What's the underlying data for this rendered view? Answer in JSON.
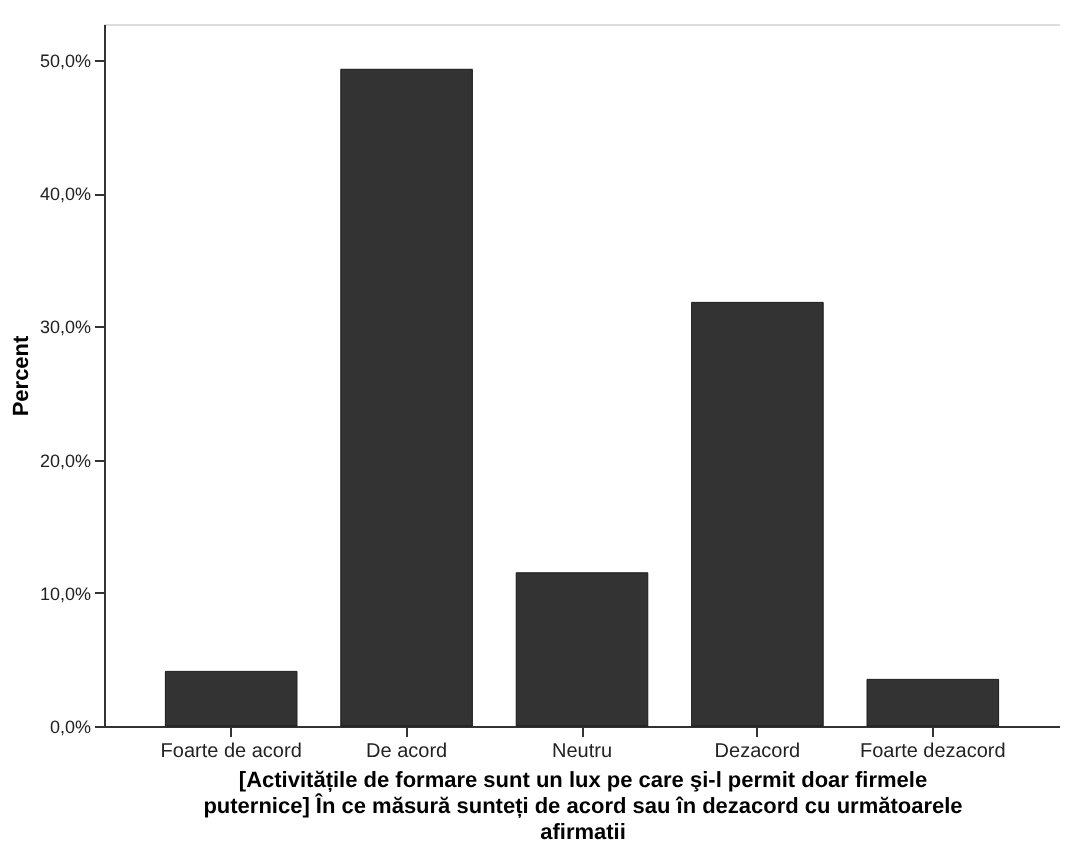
{
  "chart_data": {
    "type": "bar",
    "xlabel": "[Activitățile de formare sunt un lux pe care şi-l permit doar firmele puternice] În ce măsură sunteți de acord sau în dezacord cu următoarele afirmatii",
    "ylabel": "Percent",
    "categories": [
      "Foarte de acord",
      "De acord",
      "Neutru",
      "Dezacord",
      "Foarte dezacord"
    ],
    "values": [
      4.1,
      49.3,
      11.5,
      31.8,
      3.5
    ],
    "color": "#333333",
    "ylim": [
      0,
      52.7
    ],
    "yticks": [
      {
        "value": 0,
        "label": "0,0%"
      },
      {
        "value": 10,
        "label": "10,0%"
      },
      {
        "value": 20,
        "label": "20,0%"
      },
      {
        "value": 30,
        "label": "30,0%"
      },
      {
        "value": 40,
        "label": "40,0%"
      },
      {
        "value": 50,
        "label": "50,0%"
      }
    ],
    "grid": false
  }
}
